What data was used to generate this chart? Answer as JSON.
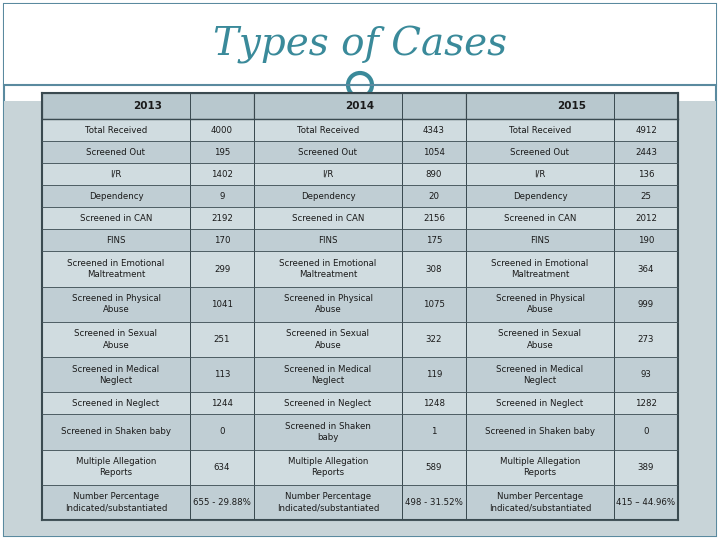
{
  "title": "Types of Cases",
  "title_color": "#3A8A9A",
  "bg_outer": "#C8D4D8",
  "bg_white": "#FFFFFF",
  "header_bg": "#B8C8CE",
  "row_bg_even": "#D0DCE0",
  "row_bg_odd": "#C0CED4",
  "border_color": "#5A8A9F",
  "cell_border": "#7A9AAA",
  "text_color": "#1A1A1A",
  "years": [
    "2013",
    "2014",
    "2015"
  ],
  "rows": [
    [
      "Total Received",
      "4000",
      "Total Received",
      "4343",
      "Total Received",
      "4912"
    ],
    [
      "Screened Out",
      "195",
      "Screened Out",
      "1054",
      "Screened Out",
      "2443"
    ],
    [
      "I/R",
      "1402",
      "I/R",
      "890",
      "I/R",
      "136"
    ],
    [
      "Dependency",
      "9",
      "Dependency",
      "20",
      "Dependency",
      "25"
    ],
    [
      "Screened in CAN",
      "2192",
      "Screened in CAN",
      "2156",
      "Screened in CAN",
      "2012"
    ],
    [
      "FINS",
      "170",
      "FINS",
      "175",
      "FINS",
      "190"
    ],
    [
      "Screened in Emotional\nMaltreatment",
      "299",
      "Screened in Emotional\nMaltreatment",
      "308",
      "Screened in Emotional\nMaltreatment",
      "364"
    ],
    [
      "Screened in Physical\nAbuse",
      "1041",
      "Screened in Physical\nAbuse",
      "1075",
      "Screened in Physical\nAbuse",
      "999"
    ],
    [
      "Screened in Sexual\nAbuse",
      "251",
      "Screened in Sexual\nAbuse",
      "322",
      "Screened in Sexual\nAbuse",
      "273"
    ],
    [
      "Screened in Medical\nNeglect",
      "113",
      "Screened in Medical\nNeglect",
      "119",
      "Screened in Medical\nNeglect",
      "93"
    ],
    [
      "Screened in Neglect",
      "1244",
      "Screened in Neglect",
      "1248",
      "Screened in Neglect",
      "1282"
    ],
    [
      "Screened in Shaken baby",
      "0",
      "Screened in Shaken\nbaby",
      "1",
      "Screened in Shaken baby",
      "0"
    ],
    [
      "Multiple Allegation\nReports",
      "634",
      "Multiple Allegation\nReports",
      "589",
      "Multiple Allegation\nReports",
      "389"
    ],
    [
      "Number Percentage\nIndicated/substantiated",
      "655 - 29.88%",
      "Number Percentage\nIndicated/substantiated",
      "498 - 31.52%",
      "Number Percentage\nIndicated/substantiated",
      "415 – 44.96%"
    ]
  ]
}
